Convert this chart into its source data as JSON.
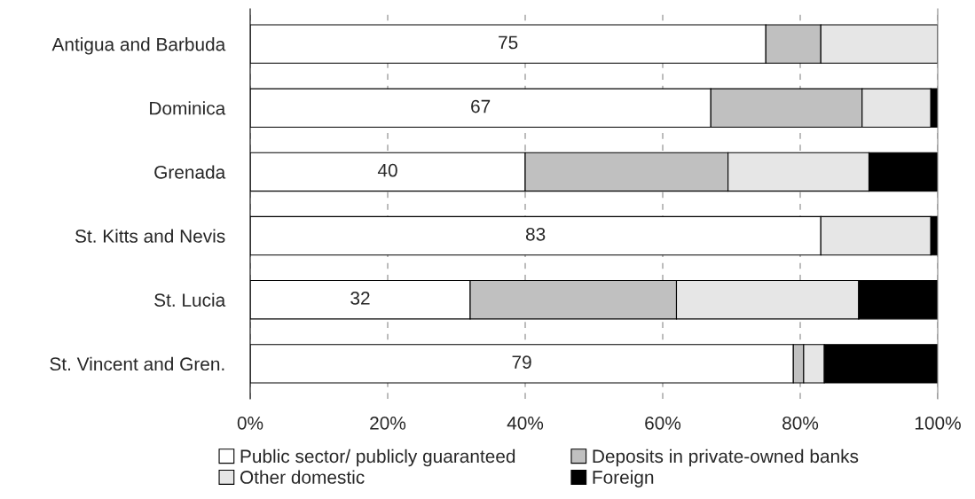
{
  "chart_data": {
    "type": "bar",
    "orientation": "horizontal",
    "stacked": true,
    "categories": [
      "Antigua and Barbuda",
      "Dominica",
      "Grenada",
      "St. Kitts and Nevis",
      "St. Lucia",
      "St. Vincent and Gren."
    ],
    "series": [
      {
        "name": "Public sector/ publicly guaranteed",
        "color": "#ffffff",
        "values": [
          75,
          67,
          40,
          83,
          32,
          79
        ],
        "value_labels": [
          "75",
          "67",
          "40",
          "83",
          "32",
          "79"
        ]
      },
      {
        "name": "Deposits in private-owned banks",
        "color": "#c0c0c0",
        "values": [
          8,
          22,
          29.5,
          0,
          30,
          1.5
        ]
      },
      {
        "name": "Other domestic",
        "color": "#e6e6e6",
        "values": [
          17,
          10,
          20.5,
          16,
          26.5,
          3
        ]
      },
      {
        "name": "Foreign",
        "color": "#000000",
        "values": [
          0,
          1,
          10,
          1,
          11.5,
          16.5
        ]
      }
    ],
    "xlim": [
      0,
      100
    ],
    "xticks": [
      {
        "value": 0,
        "label": "0%"
      },
      {
        "value": 20,
        "label": "20%"
      },
      {
        "value": 40,
        "label": "40%"
      },
      {
        "value": 60,
        "label": "60%"
      },
      {
        "value": 80,
        "label": "80%"
      },
      {
        "value": 100,
        "label": "100%"
      }
    ],
    "grid": "x",
    "legend": "bottom"
  }
}
